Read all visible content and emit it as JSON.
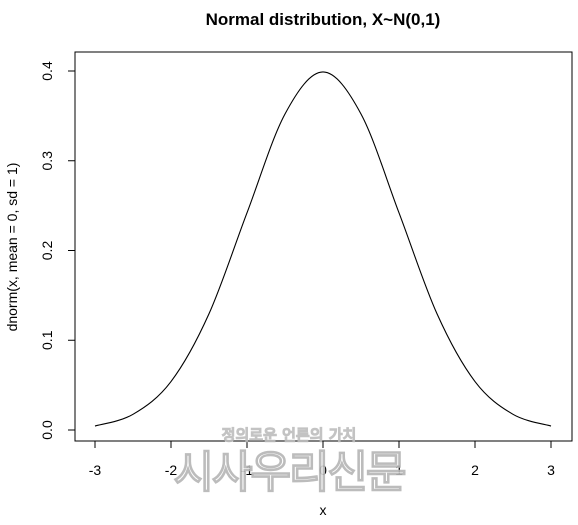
{
  "chart_data": {
    "type": "line",
    "title": "Normal distribution, X~N(0,1)",
    "xlabel": "x",
    "ylabel": "dnorm(x, mean = 0, sd = 1)",
    "xlim": [
      -3,
      3
    ],
    "ylim": [
      0,
      0.4
    ],
    "x_ticks": [
      "-3",
      "-2",
      "-1",
      "0",
      "1",
      "2",
      "3"
    ],
    "y_ticks": [
      "0.0",
      "0.1",
      "0.2",
      "0.3",
      "0.4"
    ],
    "grid": false,
    "series": [
      {
        "x": [
          -3.0,
          -2.5,
          -2.0,
          -1.5,
          -1.0,
          -0.5,
          0.0,
          0.5,
          1.0,
          1.5,
          2.0,
          2.5,
          3.0
        ],
        "y": [
          0.0044,
          0.0175,
          0.054,
          0.1295,
          0.242,
          0.3521,
          0.3989,
          0.3521,
          0.242,
          0.1295,
          0.054,
          0.0175,
          0.0044
        ]
      }
    ],
    "line_color": "#000000"
  },
  "watermark": {
    "line1": "정의로운 언론의 가치",
    "line2": "시사우리신문"
  }
}
